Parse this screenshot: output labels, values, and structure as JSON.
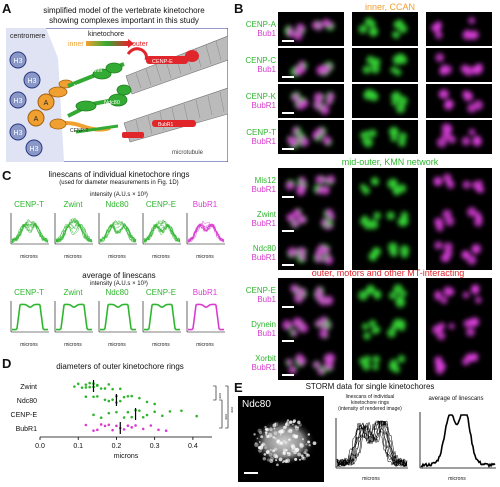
{
  "panel_a": {
    "letter": "A",
    "title_line1": "simplified model of the vertebrate kinetochore",
    "title_line2": "showing complexes important in this study",
    "centromere": "centromere",
    "kinetochore": "kinetochore",
    "inner": "inner",
    "outer": "outer",
    "microtubule": "microtubule",
    "h3": "H3",
    "a_label": "A",
    "ndc80": "Ndc80",
    "cenp_e": "CENP-E",
    "zwint": "Zwint",
    "mis12": "Mis12",
    "knl1": "Knl1",
    "cenp_t": "CENP-T",
    "cenp_c": "CENP-C",
    "bubr1": "BubR1",
    "cenp_k": "CENP-K"
  },
  "panel_b": {
    "letter": "B",
    "inner_title": "inner, CCAN",
    "mid_title": "mid-outer, KMN network",
    "outer_title": "outer, motors and other MT-interacting",
    "rows": [
      {
        "top": "CENP-A",
        "bottom": "Bub1"
      },
      {
        "top": "CENP-C",
        "bottom": "Bub1"
      },
      {
        "top": "CENP-K",
        "bottom": "BubR1"
      },
      {
        "top": "CENP-T",
        "bottom": "BubR1"
      },
      {
        "top": "Mis12",
        "bottom": "BubR1"
      },
      {
        "top": "Zwint",
        "bottom": "BubR1"
      },
      {
        "top": "Ndc80",
        "bottom": "BubR1"
      },
      {
        "top": "CENP-E",
        "bottom": "Bub1"
      },
      {
        "top": "Dynein",
        "bottom": "Bub1"
      },
      {
        "top": "Xorbit",
        "bottom": "BubR1"
      }
    ]
  },
  "panel_c": {
    "letter": "C",
    "title_line1": "linescans of individual kinetochore rings",
    "title_line2": "(used for diameter measurements in Fig. 1D)",
    "intensity_label": "intensity (A.U.s × 10³)",
    "avg_title": "average of linescans",
    "avg_intensity_label": "intensity (A.U.s × 10³)",
    "xlabel": "microns",
    "proteins": [
      "CENP-T",
      "Zwint",
      "Ndc80",
      "CENP-E",
      "BubR1"
    ]
  },
  "panel_d": {
    "letter": "D",
    "title": "diameters of outer kinetochore rings",
    "xlabel": "microns",
    "ticks": [
      "0.0",
      "0.1",
      "0.2",
      "0.3",
      "0.4"
    ],
    "sig": [
      "***",
      "***",
      "***"
    ]
  },
  "panel_e": {
    "letter": "E",
    "title": "STORM data for single kinetochores",
    "image_label": "Ndc80",
    "linescan_title_1": "linescans of individual",
    "linescan_title_2": "kinetochore rings",
    "linescan_title_3": "(intensity of rendered image)",
    "avg_title": "average of linescans",
    "xlabel": "microns"
  },
  "chart_data": [
    {
      "type": "scatter",
      "title": "diameters of outer kinetochore rings",
      "xlabel": "microns",
      "xlim": [
        0.0,
        0.45
      ],
      "categories": [
        "Zwint",
        "Ndc80",
        "CENP-E",
        "BubR1"
      ],
      "medians": [
        0.14,
        0.2,
        0.25,
        0.21
      ],
      "series": [
        {
          "name": "Zwint",
          "values": [
            0.09,
            0.1,
            0.11,
            0.12,
            0.12,
            0.13,
            0.13,
            0.14,
            0.14,
            0.15,
            0.15,
            0.16,
            0.17,
            0.18,
            0.19,
            0.21
          ]
        },
        {
          "name": "Ndc80",
          "values": [
            0.12,
            0.14,
            0.15,
            0.17,
            0.18,
            0.19,
            0.2,
            0.2,
            0.21,
            0.22,
            0.23,
            0.24,
            0.26,
            0.28,
            0.3
          ]
        },
        {
          "name": "CENP-E",
          "values": [
            0.14,
            0.16,
            0.18,
            0.2,
            0.22,
            0.23,
            0.24,
            0.25,
            0.26,
            0.27,
            0.28,
            0.3,
            0.32,
            0.34,
            0.37,
            0.41
          ]
        },
        {
          "name": "BubR1",
          "values": [
            0.12,
            0.14,
            0.15,
            0.16,
            0.17,
            0.18,
            0.19,
            0.2,
            0.21,
            0.22,
            0.23,
            0.24,
            0.25,
            0.27,
            0.29,
            0.31,
            0.33
          ]
        }
      ]
    }
  ]
}
